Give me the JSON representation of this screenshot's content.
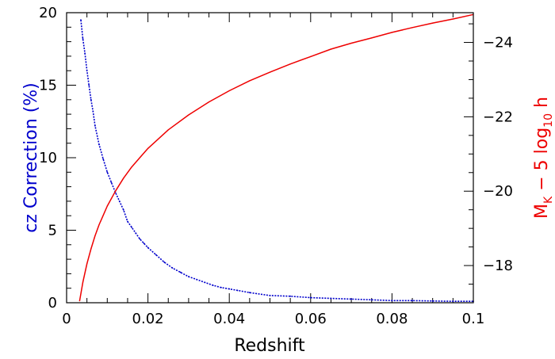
{
  "chart_data": {
    "type": "line",
    "title": "",
    "xlabel": "Redshift",
    "ylabel_left": "cz Correction  (%)",
    "ylabel_right": {
      "base": "M",
      "sub1": "K",
      "mid": " − 5 log",
      "sub2": "10",
      "tail": " h"
    },
    "xlim": [
      0,
      0.1
    ],
    "ylim_left": [
      0,
      20
    ],
    "ylim_right": [
      -17,
      -24.8
    ],
    "grid": false,
    "legend": "none",
    "x_ticks": [
      "0",
      "0.02",
      "0.04",
      "0.06",
      "0.08",
      "0.1"
    ],
    "y_left_ticks": [
      "0",
      "5",
      "10",
      "15",
      "20"
    ],
    "y_right_ticks": [
      "−18",
      "−20",
      "−22",
      "−24"
    ],
    "colors": {
      "correction": "#0000cc",
      "magnitude": "#ee0000",
      "axes": "#000000"
    },
    "series": [
      {
        "axis": "left",
        "style": "dotted",
        "x": [
          0.0035,
          0.004,
          0.0045,
          0.005,
          0.0055,
          0.006,
          0.0065,
          0.007,
          0.008,
          0.009,
          0.01,
          0.011,
          0.012,
          0.013,
          0.014,
          0.015,
          0.016,
          0.017,
          0.018,
          0.019,
          0.02,
          0.022,
          0.024,
          0.026,
          0.028,
          0.03,
          0.032,
          0.034,
          0.036,
          0.038,
          0.04,
          0.042,
          0.045,
          0.05,
          0.055,
          0.06,
          0.065,
          0.07,
          0.075,
          0.08,
          0.085,
          0.09,
          0.095,
          0.1
        ],
        "values": [
          19.5,
          18.2,
          17.2,
          16.0,
          15.0,
          14.0,
          13.2,
          12.2,
          10.9,
          9.9,
          9.0,
          8.3,
          7.6,
          7.0,
          6.4,
          5.6,
          5.2,
          4.8,
          4.4,
          4.1,
          3.8,
          3.3,
          2.8,
          2.4,
          2.1,
          1.8,
          1.6,
          1.4,
          1.2,
          1.05,
          0.95,
          0.85,
          0.7,
          0.5,
          0.45,
          0.35,
          0.3,
          0.25,
          0.2,
          0.15,
          0.15,
          0.12,
          0.1,
          0.1
        ]
      },
      {
        "axis": "right",
        "style": "solid",
        "x": [
          0.0032,
          0.004,
          0.005,
          0.006,
          0.007,
          0.008,
          0.009,
          0.01,
          0.012,
          0.014,
          0.016,
          0.018,
          0.02,
          0.025,
          0.03,
          0.035,
          0.04,
          0.045,
          0.05,
          0.055,
          0.06,
          0.065,
          0.07,
          0.075,
          0.08,
          0.085,
          0.09,
          0.095,
          0.1
        ],
        "values": [
          -17.05,
          -17.55,
          -18.05,
          -18.45,
          -18.8,
          -19.1,
          -19.35,
          -19.6,
          -20.0,
          -20.35,
          -20.65,
          -20.9,
          -21.15,
          -21.65,
          -22.05,
          -22.4,
          -22.7,
          -22.97,
          -23.2,
          -23.42,
          -23.62,
          -23.82,
          -23.98,
          -24.12,
          -24.27,
          -24.4,
          -24.52,
          -24.63,
          -24.75
        ]
      }
    ]
  }
}
